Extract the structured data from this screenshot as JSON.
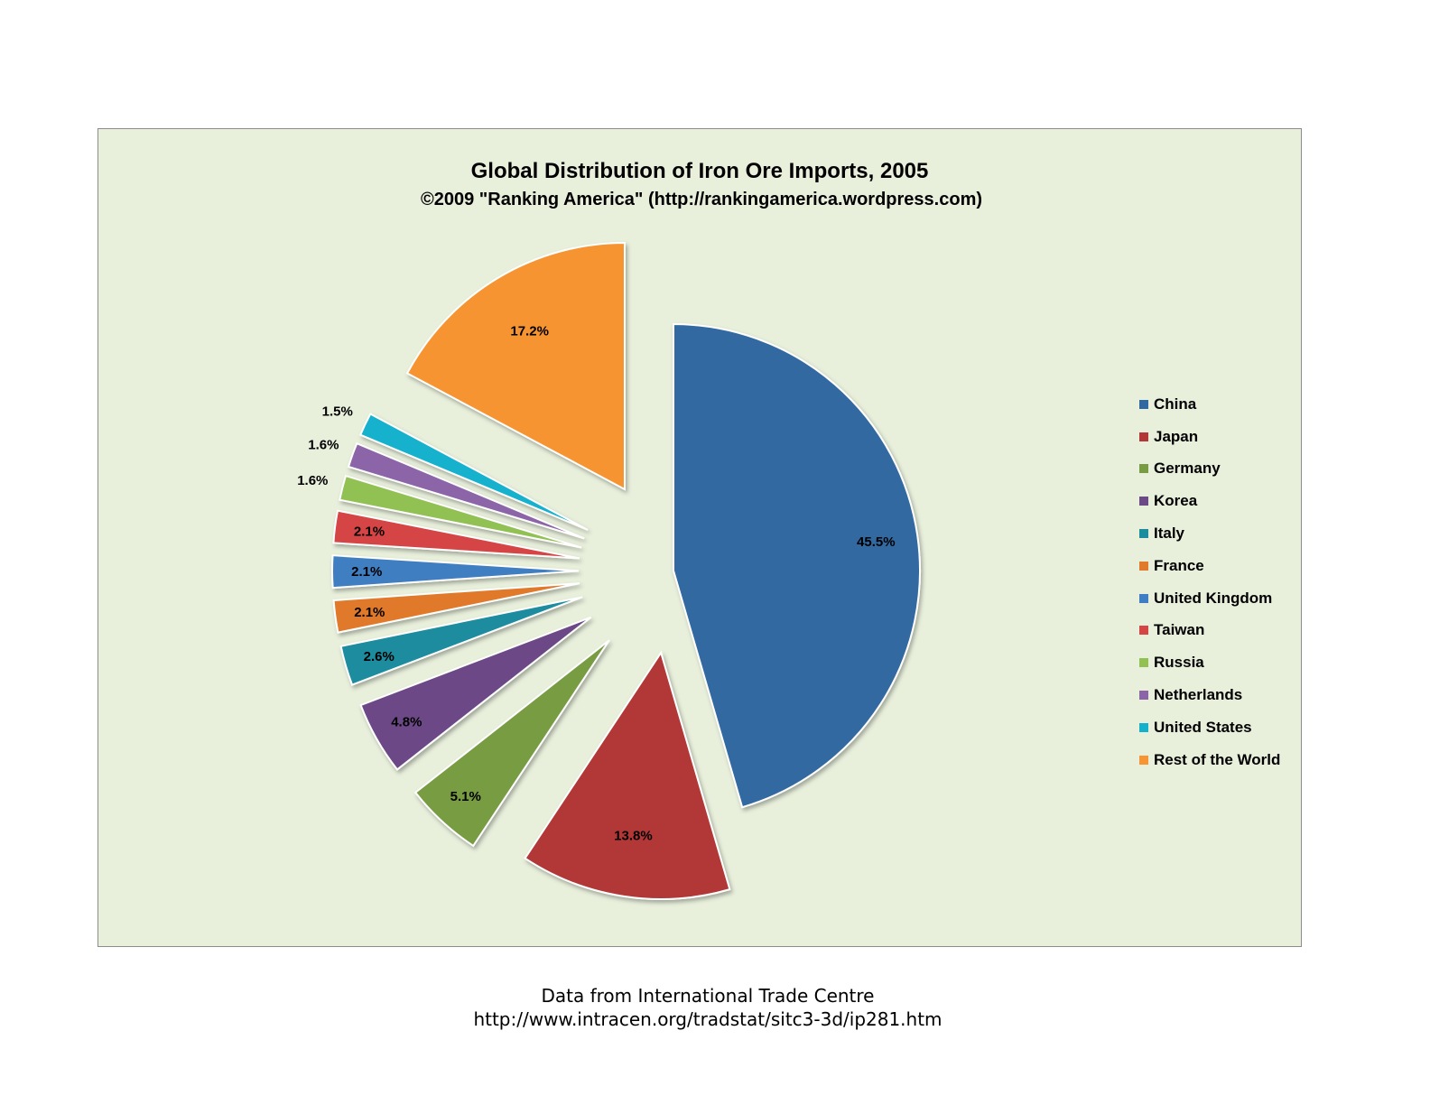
{
  "chart_data": {
    "type": "pie",
    "title": "Global Distribution of Iron Ore Imports, 2005",
    "subtitle": "©2009 \"Ranking America\" (http://rankingamerica.wordpress.com)",
    "legend_position": "right",
    "slices": [
      {
        "label": "China",
        "value": 45.5,
        "display": "45.5%",
        "color": "#3069a1"
      },
      {
        "label": "Japan",
        "value": 13.8,
        "display": "13.8%",
        "color": "#b23838"
      },
      {
        "label": "Germany",
        "value": 5.1,
        "display": "5.1%",
        "color": "#779c43"
      },
      {
        "label": "Korea",
        "value": 4.8,
        "display": "4.8%",
        "color": "#6c4a86"
      },
      {
        "label": "Italy",
        "value": 2.6,
        "display": "2.6%",
        "color": "#1a8c9e"
      },
      {
        "label": "France",
        "value": 2.1,
        "display": "2.1%",
        "color": "#e07a2c"
      },
      {
        "label": "United Kingdom",
        "value": 2.1,
        "display": "2.1%",
        "color": "#3f7ec2"
      },
      {
        "label": "Taiwan",
        "value": 2.1,
        "display": "2.1%",
        "color": "#d64545"
      },
      {
        "label": "Russia",
        "value": 1.6,
        "display": "1.6%",
        "color": "#92c153"
      },
      {
        "label": "Netherlands",
        "value": 1.6,
        "display": "1.6%",
        "color": "#8b65a8"
      },
      {
        "label": "United States",
        "value": 1.5,
        "display": "1.5%",
        "color": "#15b1cc"
      },
      {
        "label": "Rest of the World",
        "value": 17.2,
        "display": "17.2%",
        "color": "#f79433"
      }
    ]
  },
  "footer": {
    "line1": "Data from International Trade Centre",
    "line2": "http://www.intracen.org/tradstat/sitc3-3d/ip281.htm"
  }
}
